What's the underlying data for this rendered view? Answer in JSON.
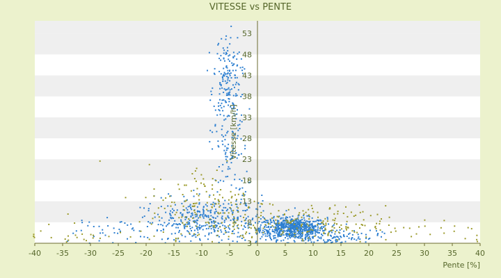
{
  "chart_data": {
    "type": "scatter",
    "title": "VITESSE vs PENTE",
    "xlabel": "Pente [%]",
    "ylabel": "Vitesse [km/h]",
    "xlim": [
      -40,
      40
    ],
    "ylim": [
      3,
      56
    ],
    "x_ticks": [
      "-40",
      "-35",
      "-30",
      "-25",
      "-20",
      "-15",
      "-10",
      "-5",
      "0",
      "5",
      "10",
      "15",
      "20",
      "25",
      "30",
      "35",
      "40"
    ],
    "y_ticks": [
      "3",
      "8",
      "13",
      "18",
      "23",
      "28",
      "33",
      "38",
      "43",
      "48",
      "53"
    ],
    "grid": "alternating horizontal bands",
    "legend": "none",
    "colors": {
      "background": "#ecf2cd",
      "band_light": "#ffffff",
      "band_dark": "#efefef",
      "axis": "#6b6b2f",
      "text": "#55662a",
      "series_blue": "#2d7fd0",
      "series_olive": "#9b9a2a"
    },
    "series": [
      {
        "color": "#2d7fd0",
        "clusters": [
          {
            "cx": 6.5,
            "cy": 6.5,
            "sx": 3.0,
            "sy": 1.3,
            "n": 650
          },
          {
            "cx": -5.5,
            "cy": 43,
            "sx": 1.2,
            "sy": 5.0,
            "n": 140
          },
          {
            "cx": -5.0,
            "cy": 26,
            "sx": 1.6,
            "sy": 9.0,
            "n": 140
          },
          {
            "cx": -9,
            "cy": 8,
            "sx": 6.0,
            "sy": 2.8,
            "n": 420
          },
          {
            "cx": 14,
            "cy": 4.5,
            "sx": 4.0,
            "sy": 1.0,
            "n": 110
          },
          {
            "cx": -28,
            "cy": 5,
            "sx": 6.0,
            "sy": 2.0,
            "n": 40
          }
        ]
      },
      {
        "color": "#9b9a2a",
        "clusters": [
          {
            "cx": 9,
            "cy": 7.5,
            "sx": 7.0,
            "sy": 2.2,
            "n": 170
          },
          {
            "cx": -8,
            "cy": 11,
            "sx": 6.0,
            "sy": 5.5,
            "n": 180
          },
          {
            "cx": -30,
            "cy": 5,
            "sx": 8.0,
            "sy": 2.0,
            "n": 40
          },
          {
            "cx": 30,
            "cy": 5.5,
            "sx": 6.0,
            "sy": 2.0,
            "n": 25
          }
        ]
      }
    ]
  }
}
